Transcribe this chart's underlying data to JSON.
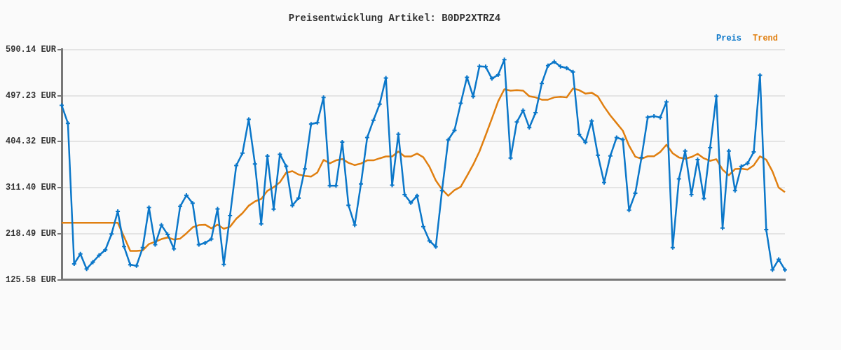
{
  "chart_data": {
    "type": "line",
    "title": "Preisentwicklung Artikel: B0DP2XTRZ4",
    "categories": [
      null,
      null,
      null,
      null,
      null,
      null,
      null,
      null,
      null,
      null,
      null,
      null,
      null,
      null,
      null,
      null,
      null,
      null,
      null,
      null,
      null,
      null,
      null,
      null,
      null,
      null,
      null,
      null,
      null,
      null,
      null,
      null,
      null,
      null,
      null,
      null,
      null,
      null,
      null,
      null,
      null,
      null,
      null,
      null,
      null,
      null,
      null,
      null,
      null,
      null,
      null,
      null,
      null,
      null,
      null,
      null,
      null,
      null,
      null,
      null,
      null,
      null,
      null,
      null,
      null,
      null,
      null,
      null,
      null,
      null,
      null,
      null,
      null,
      null,
      null,
      null,
      null,
      null,
      null,
      null,
      null,
      null,
      null,
      null,
      null,
      null,
      null,
      null,
      null,
      null,
      null,
      null,
      null,
      null,
      null,
      null,
      null,
      null,
      null,
      null,
      null,
      null,
      null,
      null,
      null,
      null,
      null,
      null,
      null,
      null,
      null,
      null,
      null,
      null,
      null,
      null,
      null
    ],
    "series": [
      {
        "name": "Preis",
        "color": "#0b77c9",
        "marker": "cross",
        "values": [
          477.6,
          441.2,
          157.5,
          177.5,
          147.4,
          161.1,
          174.8,
          185.7,
          218.0,
          263.6,
          192.5,
          155.7,
          153.8,
          190.3,
          271.3,
          196.2,
          235.8,
          216.7,
          188.0,
          273.6,
          295.9,
          280.0,
          196.2,
          199.8,
          207.6,
          268.6,
          156.6,
          254.9,
          356.0,
          381.1,
          449.4,
          359.2,
          238.5,
          375.2,
          268.1,
          378.8,
          354.7,
          275.4,
          290.5,
          349.2,
          439.8,
          442.6,
          493.6,
          315.5,
          315.5,
          403.4,
          275.9,
          235.8,
          319.1,
          412.5,
          447.6,
          479.9,
          532.8,
          316.4,
          419.3,
          297.3,
          280.9,
          295.0,
          232.6,
          203.9,
          192.1,
          305.5,
          407.9,
          427.1,
          481.8,
          534.1,
          495.4,
          556.4,
          555.5,
          531.4,
          539.1,
          569.6,
          371.1,
          443.9,
          467.2,
          432.6,
          462.6,
          521.8,
          557.8,
          565.5,
          556.0,
          552.8,
          545.0,
          418.9,
          402.9,
          446.2,
          377.0,
          321.9,
          375.6,
          412.5,
          408.4,
          265.9,
          300.1,
          372.4,
          453.5,
          455.8,
          453.0,
          484.5,
          190.3,
          329.2,
          385.2,
          297.3,
          367.9,
          289.6,
          392.0,
          495.9,
          229.9,
          385.2,
          305.5,
          354.2,
          360.6,
          383.4,
          538.2,
          226.7,
          145.6,
          166.6,
          145.6
        ]
      },
      {
        "name": "Trend",
        "color": "#e07f10",
        "marker": "none",
        "values": [
          240.4,
          240.4,
          240.4,
          240.4,
          240.4,
          240.4,
          240.4,
          240.4,
          240.4,
          240.4,
          212.1,
          183.5,
          183.5,
          184.8,
          197.5,
          202.1,
          207.6,
          210.8,
          206.7,
          208.5,
          219.0,
          231.3,
          235.8,
          236.7,
          229.4,
          236.7,
          228.5,
          232.6,
          248.6,
          259.9,
          275.0,
          283.6,
          288.6,
          305.0,
          312.3,
          322.3,
          341.5,
          344.7,
          337.8,
          335.1,
          333.7,
          341.9,
          367.4,
          360.6,
          366.5,
          369.2,
          361.5,
          356.9,
          360.1,
          366.5,
          366.5,
          370.6,
          374.3,
          374.3,
          384.3,
          374.3,
          374.3,
          380.2,
          372.9,
          353.3,
          326.0,
          307.8,
          295.0,
          306.4,
          313.2,
          335.1,
          357.9,
          384.3,
          417.1,
          450.8,
          485.4,
          510.0,
          507.3,
          508.2,
          507.3,
          495.9,
          493.6,
          489.0,
          489.0,
          493.6,
          494.9,
          493.6,
          511.4,
          508.2,
          501.3,
          503.1,
          495.4,
          474.9,
          457.1,
          441.7,
          426.2,
          396.0,
          373.8,
          369.7,
          374.7,
          374.7,
          383.4,
          398.0,
          380.7,
          372.4,
          369.7,
          373.3,
          379.7,
          370.6,
          365.6,
          368.8,
          347.8,
          336.4,
          348.8,
          349.6,
          347.8,
          356.5,
          374.7,
          367.9,
          344.2,
          311.4,
          302.3
        ]
      }
    ],
    "ylim": [
      125.58,
      590.14
    ],
    "yticks": [
      {
        "value": 125.58,
        "label": "125.58 EUR"
      },
      {
        "value": 218.49,
        "label": "218.49 EUR"
      },
      {
        "value": 311.4,
        "label": "311.40 EUR"
      },
      {
        "value": 404.32,
        "label": "404.32 EUR"
      },
      {
        "value": 497.23,
        "label": "497.23 EUR"
      },
      {
        "value": 590.14,
        "label": "590.14 EUR"
      }
    ],
    "grid": "y",
    "legend": "top right",
    "line_style": "solid"
  }
}
